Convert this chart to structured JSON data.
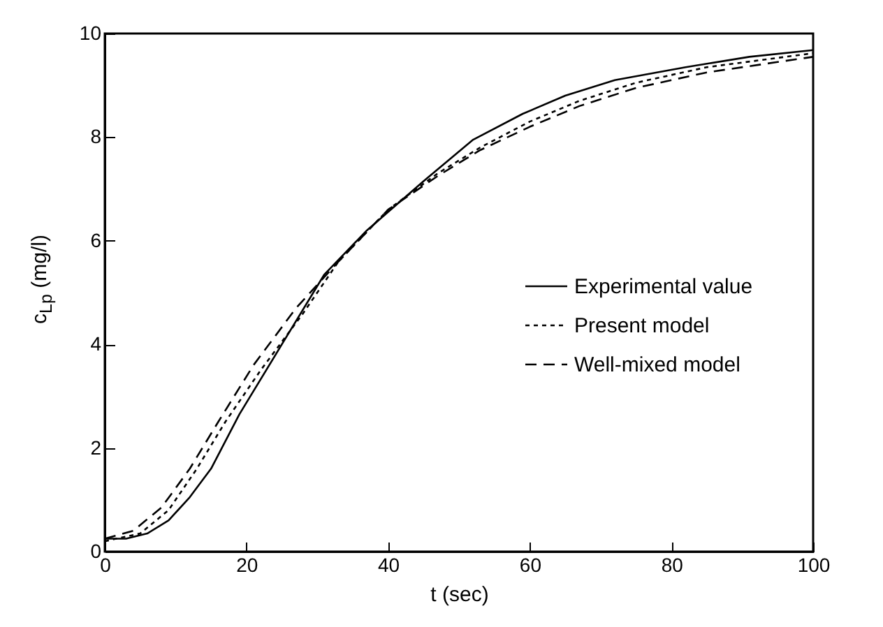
{
  "chart_data": {
    "type": "line",
    "xlabel": "t (sec)",
    "ylabel": "c$_{Lp}$ (mg/l)",
    "xlim": [
      0,
      100
    ],
    "ylim": [
      0,
      10
    ],
    "xticks": [
      0,
      20,
      40,
      60,
      80,
      100
    ],
    "yticks": [
      0,
      2,
      4,
      6,
      8,
      10
    ],
    "grid": false,
    "legend": "right",
    "marker": "none",
    "series": [
      {
        "name": "Experimental value",
        "color": "#000000",
        "line_style": "solid",
        "x": [
          0,
          3,
          6,
          9,
          12,
          15,
          19,
          25,
          31,
          37,
          45,
          52,
          59,
          65,
          72,
          82,
          91,
          100
        ],
        "values": [
          0.25,
          0.25,
          0.35,
          0.6,
          1.05,
          1.6,
          2.65,
          4.0,
          5.35,
          6.2,
          7.15,
          7.95,
          8.45,
          8.8,
          9.1,
          9.35,
          9.55,
          9.68
        ]
      },
      {
        "name": "Present model",
        "color": "#000000",
        "line_style": "dotted",
        "x": [
          0,
          5,
          9,
          13,
          17,
          22,
          28,
          33,
          40,
          47,
          53,
          60,
          67,
          75,
          85,
          100
        ],
        "values": [
          0.2,
          0.35,
          0.8,
          1.6,
          2.5,
          3.5,
          4.6,
          5.6,
          6.6,
          7.3,
          7.8,
          8.3,
          8.7,
          9.05,
          9.35,
          9.62
        ]
      },
      {
        "name": "Well-mixed model",
        "color": "#000000",
        "line_style": "dashed",
        "x": [
          0,
          4,
          8,
          12,
          16,
          21,
          27,
          33,
          40,
          47,
          53,
          60,
          67,
          75,
          85,
          100
        ],
        "values": [
          0.25,
          0.4,
          0.85,
          1.6,
          2.5,
          3.6,
          4.7,
          5.6,
          6.6,
          7.25,
          7.75,
          8.2,
          8.6,
          8.95,
          9.25,
          9.55
        ]
      }
    ]
  }
}
